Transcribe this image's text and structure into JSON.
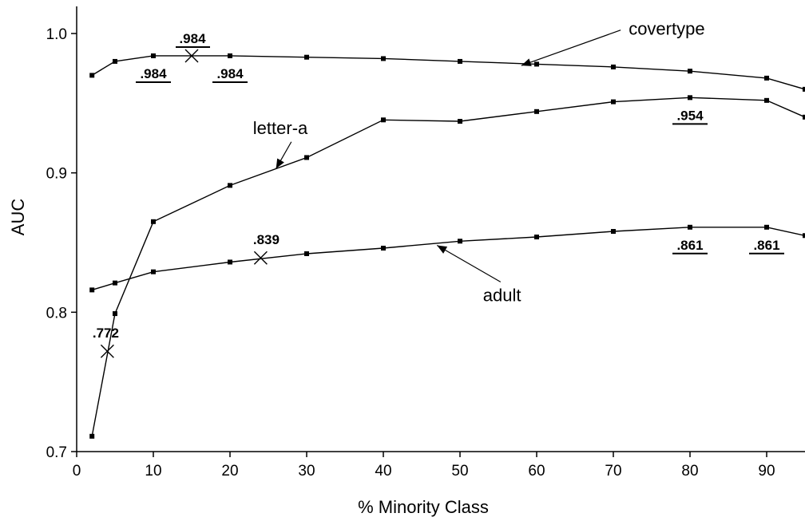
{
  "chart_data": {
    "type": "line",
    "title": "",
    "xlabel": "% Minority Class",
    "ylabel": "AUC",
    "xlim": [
      0,
      95
    ],
    "ylim": [
      0.7,
      1.0
    ],
    "x_ticks": [
      0,
      10,
      20,
      30,
      40,
      50,
      60,
      70,
      80,
      90
    ],
    "x_tick_labels": [
      "0",
      "10",
      "20",
      "30",
      "40",
      "50",
      "60",
      "70",
      "80",
      "90"
    ],
    "y_ticks": [
      0.7,
      0.8,
      0.9,
      1.0
    ],
    "y_tick_labels": [
      "0.7",
      "0.8",
      "0.9",
      "1.0"
    ],
    "grid": false,
    "series": [
      {
        "name": "covertype",
        "x": [
          2,
          5,
          10,
          20,
          30,
          40,
          50,
          60,
          70,
          80,
          90,
          95
        ],
        "y": [
          0.97,
          0.98,
          0.984,
          0.984,
          0.983,
          0.982,
          0.98,
          0.978,
          0.976,
          0.973,
          0.968,
          0.96
        ]
      },
      {
        "name": "letter-a",
        "x": [
          2,
          5,
          10,
          20,
          30,
          40,
          50,
          60,
          70,
          80,
          90,
          95
        ],
        "y": [
          0.711,
          0.799,
          0.865,
          0.891,
          0.911,
          0.938,
          0.937,
          0.944,
          0.951,
          0.954,
          0.952,
          0.94
        ]
      },
      {
        "name": "adult",
        "x": [
          2,
          5,
          10,
          20,
          30,
          40,
          50,
          60,
          70,
          80,
          90,
          95
        ],
        "y": [
          0.816,
          0.821,
          0.829,
          0.836,
          0.842,
          0.846,
          0.851,
          0.854,
          0.858,
          0.861,
          0.861,
          0.855
        ]
      }
    ],
    "x_markers": [
      {
        "x": 15,
        "y": 0.984,
        "label": ".984"
      },
      {
        "x": 24,
        "y": 0.839,
        "label": ".839"
      },
      {
        "x": 4,
        "y": 0.772,
        "label": ".772"
      }
    ],
    "underlined_labels": [
      {
        "x": 10,
        "y": 0.984,
        "label": ".984"
      },
      {
        "x": 20,
        "y": 0.984,
        "label": ".984"
      },
      {
        "x": 80,
        "y": 0.954,
        "label": ".954"
      },
      {
        "x": 80,
        "y": 0.861,
        "label": ".861"
      },
      {
        "x": 90,
        "y": 0.861,
        "label": ".861"
      }
    ],
    "series_labels": [
      {
        "text": "covertype",
        "text_x": 72,
        "text_y": 0.999,
        "arrow_to_x": 58,
        "arrow_to_y": 0.977
      },
      {
        "text": "letter-a",
        "text_x": 23,
        "text_y": 0.928,
        "arrow_to_x": 26,
        "arrow_to_y": 0.903
      },
      {
        "text": "adult",
        "text_x": 53,
        "text_y": 0.808,
        "arrow_to_x": 47,
        "arrow_to_y": 0.848
      }
    ]
  }
}
